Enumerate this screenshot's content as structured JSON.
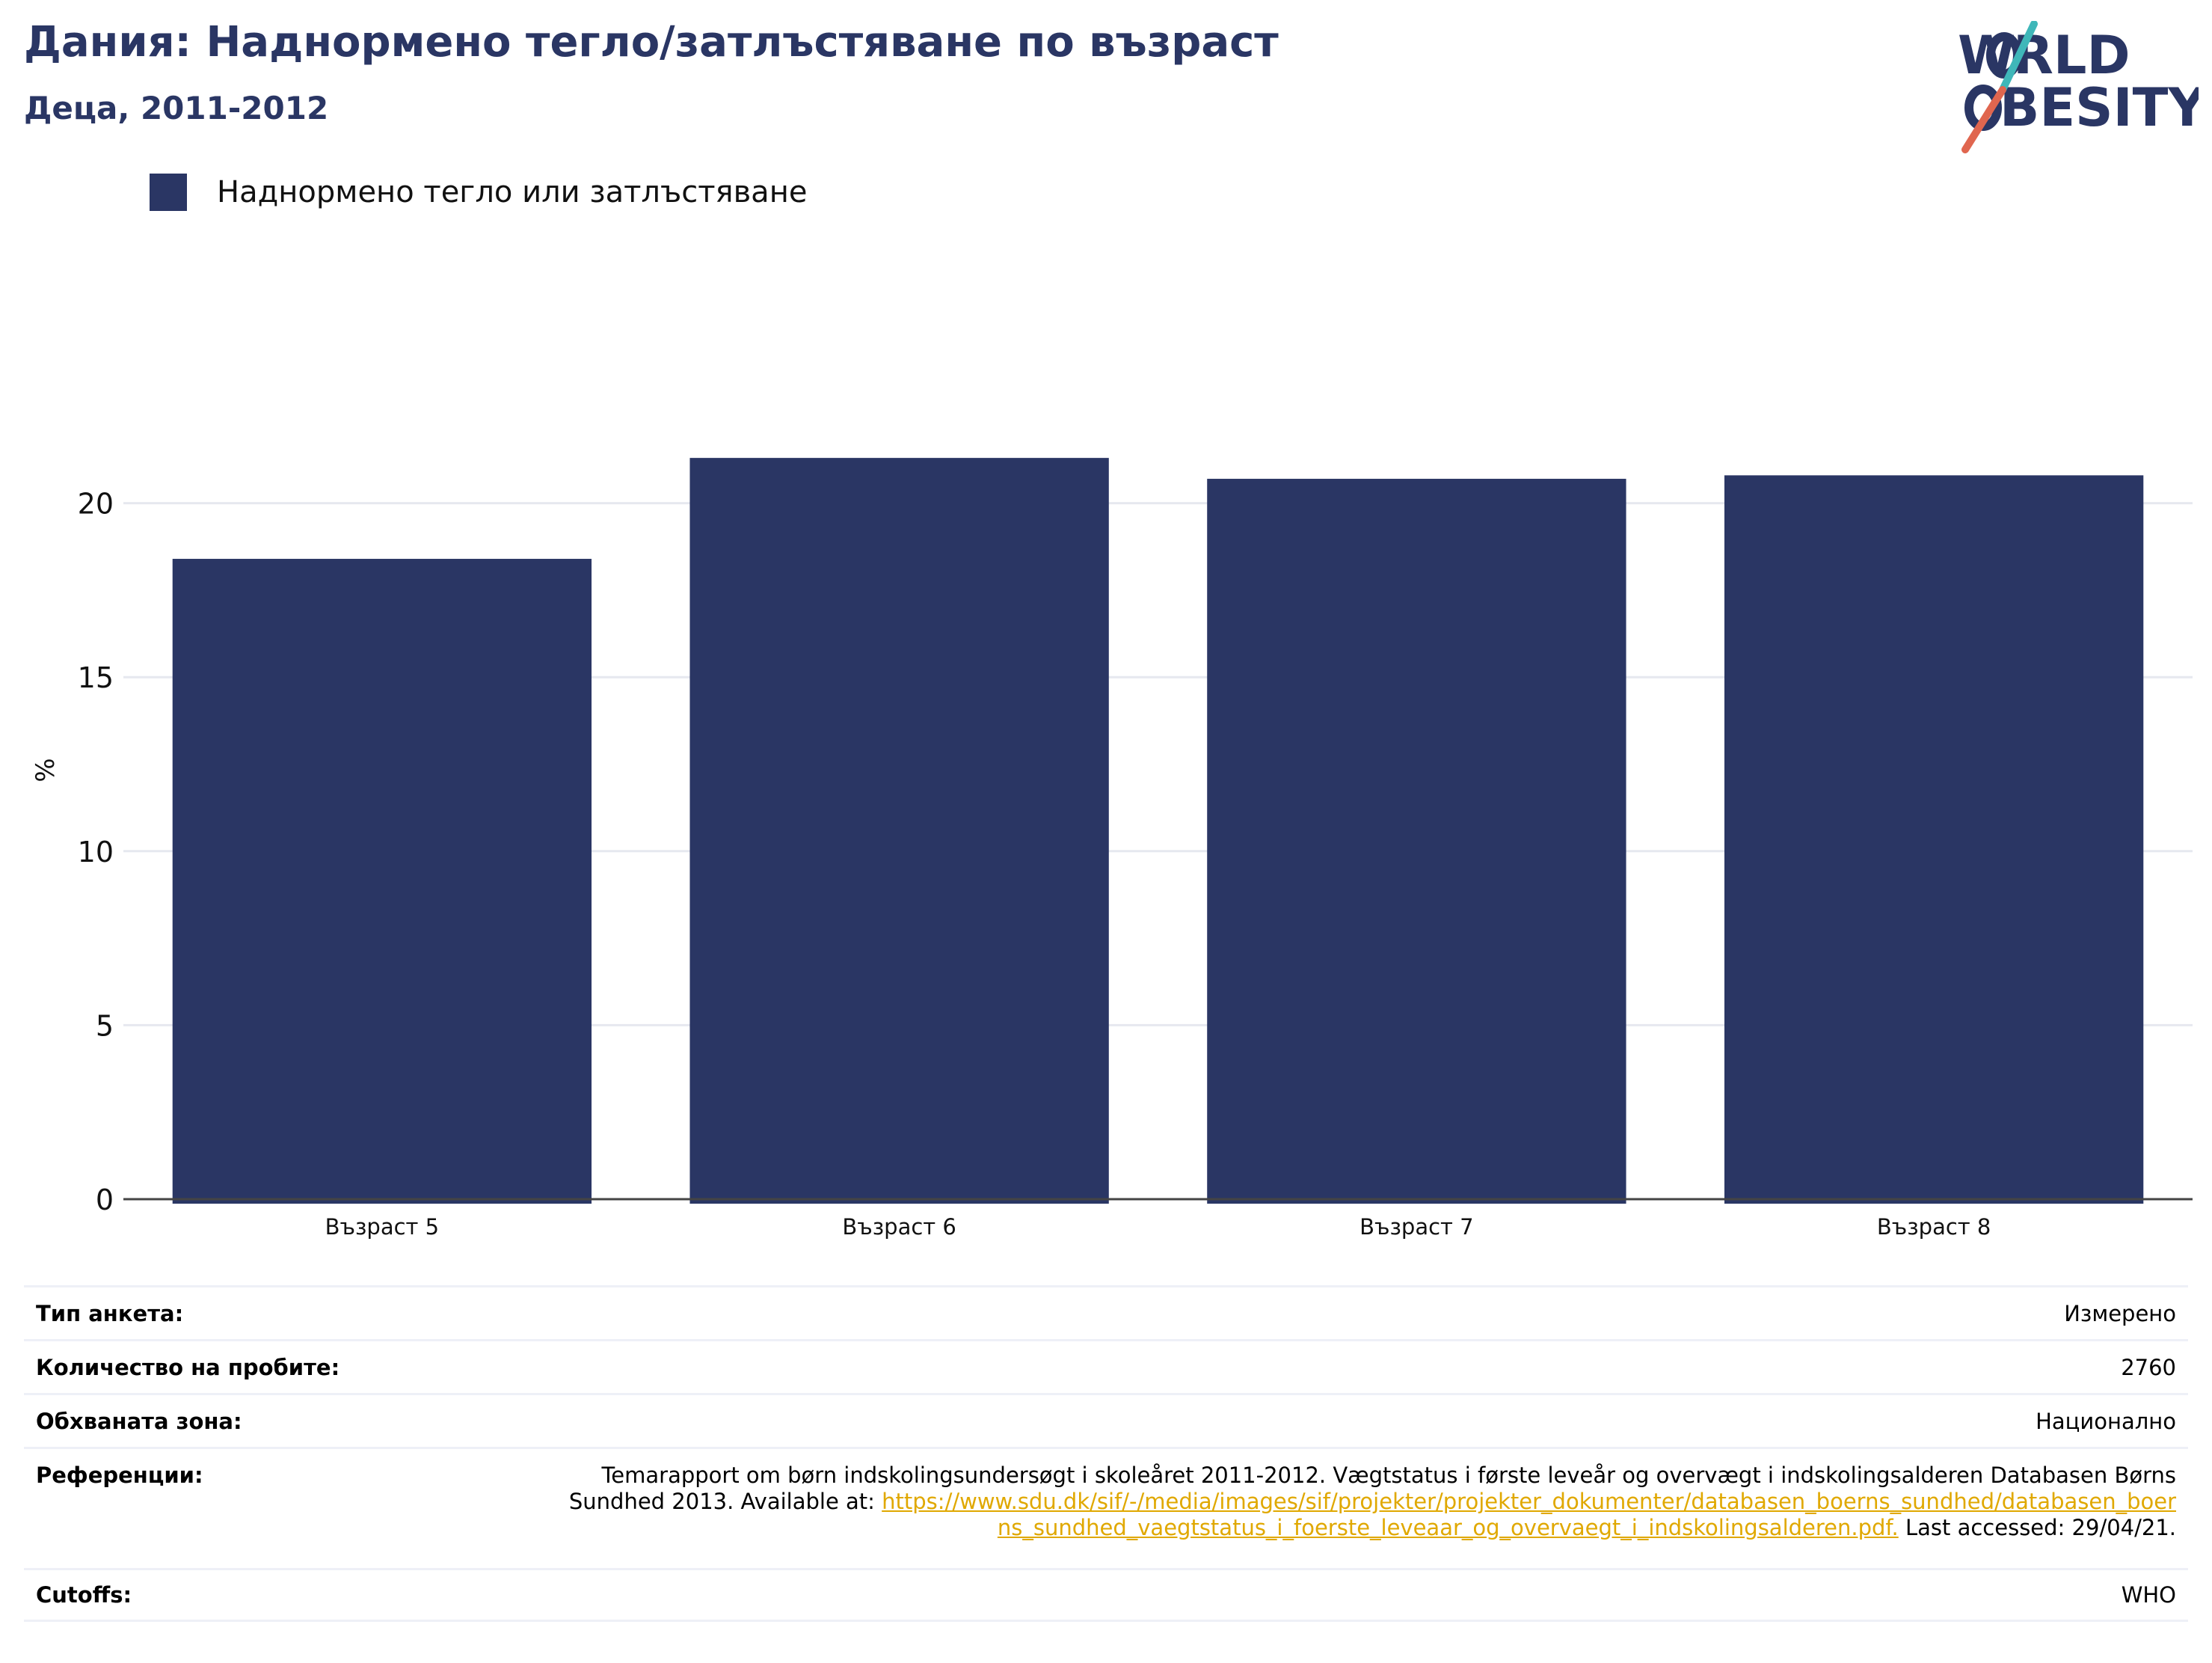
{
  "title": "Дания: Наднормено тегло/затлъстяване по възраст",
  "subtitle": "Деца, 2011-2012",
  "logo": {
    "line1": "WORLD",
    "line2": "OBESITY"
  },
  "colors": {
    "bar": "#2a3664",
    "title": "#2a3664",
    "link": "#e0a800",
    "grid": "#e6e8ef",
    "axis": "#444444"
  },
  "chart_data": {
    "type": "bar",
    "categories": [
      "Възраст 5",
      "Възраст 6",
      "Възраст 7",
      "Възраст 8"
    ],
    "series": [
      {
        "name": "Наднормено тегло или затлъстяване",
        "values": [
          18.4,
          21.3,
          20.7,
          20.8
        ]
      }
    ],
    "ylabel": "%",
    "ylim": [
      0,
      25
    ],
    "yticks": [
      0,
      5,
      10,
      15,
      20
    ],
    "grid": true,
    "legend": "top-left"
  },
  "info": {
    "survey_type": {
      "label": "Тип анкета:",
      "value": "Измерено"
    },
    "sample_size": {
      "label": "Количество на пробите:",
      "value": "2760"
    },
    "coverage": {
      "label": "Обхваната зона:",
      "value": "Национално"
    },
    "references": {
      "label": "Референции:",
      "text_before": "Temarapport om børn indskolingsundersøgt i skoleåret 2011-2012. Vægtstatus i første leveår og overvægt i indskolingsalderen Databasen Børns Sundhed 2013. Available at: ",
      "link": "https://www.sdu.dk/sif/-/media/images/sif/projekter/projekter_dokumenter/databasen_boerns_sundhed/databasen_boerns_sundhed_vaegtstatus_i_foerste_leveaar_og_overvaegt_i_indskolingsalderen.pdf.",
      "text_after": " Last accessed: 29/04/21."
    },
    "cutoffs": {
      "label": "Cutoffs:",
      "value": "WHO"
    }
  }
}
